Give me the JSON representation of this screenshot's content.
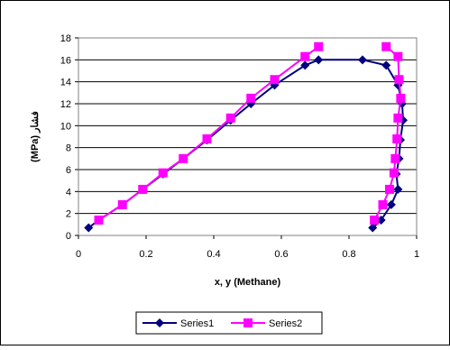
{
  "chart_data": {
    "type": "line",
    "title": "",
    "xlabel": "x, y (Methane)",
    "ylabel": "(MPa) فشار",
    "xlim": [
      0,
      1
    ],
    "ylim": [
      0,
      18
    ],
    "x_ticks": [
      0,
      0.2,
      0.4,
      0.6,
      0.8,
      1
    ],
    "x_tick_labels": [
      "0",
      "0.2",
      "0.4",
      "0.6",
      "0.8",
      "1"
    ],
    "y_ticks": [
      0,
      2,
      4,
      6,
      8,
      10,
      12,
      14,
      16,
      18
    ],
    "y_tick_labels": [
      "0",
      "2",
      "4",
      "6",
      "8",
      "10",
      "12",
      "14",
      "16",
      "18"
    ],
    "grid": "horizontal",
    "legend_position": "bottom",
    "series": [
      {
        "name": "Series1",
        "color": "#000080",
        "marker": "diamond",
        "points": [
          [
            0.03,
            0.7
          ],
          [
            0.06,
            1.4
          ],
          [
            0.13,
            2.8
          ],
          [
            0.19,
            4.2
          ],
          [
            0.25,
            5.6
          ],
          [
            0.31,
            7.0
          ],
          [
            0.38,
            8.7
          ],
          [
            0.45,
            10.5
          ],
          [
            0.51,
            12.0
          ],
          [
            0.58,
            13.7
          ],
          [
            0.67,
            15.5
          ],
          [
            0.71,
            16.0
          ],
          [
            0.84,
            16.0
          ],
          [
            0.91,
            15.5
          ],
          [
            0.945,
            13.7
          ],
          [
            0.957,
            12.0
          ],
          [
            0.96,
            10.5
          ],
          [
            0.952,
            8.7
          ],
          [
            0.948,
            7.0
          ],
          [
            0.94,
            5.6
          ],
          [
            0.945,
            4.2
          ],
          [
            0.925,
            2.8
          ],
          [
            0.895,
            1.4
          ],
          [
            0.87,
            0.7
          ]
        ]
      },
      {
        "name": "Series2",
        "color": "#ff00ff",
        "marker": "square",
        "points": [
          [
            0.06,
            1.4
          ],
          [
            0.13,
            2.8
          ],
          [
            0.19,
            4.2
          ],
          [
            0.25,
            5.7
          ],
          [
            0.31,
            7.0
          ],
          [
            0.38,
            8.8
          ],
          [
            0.45,
            10.7
          ],
          [
            0.51,
            12.5
          ],
          [
            0.58,
            14.2
          ],
          [
            0.67,
            16.3
          ],
          [
            0.71,
            17.2
          ]
        ],
        "points_right": [
          [
            0.91,
            17.2
          ],
          [
            0.945,
            16.3
          ],
          [
            0.948,
            14.2
          ],
          [
            0.953,
            12.5
          ],
          [
            0.945,
            10.7
          ],
          [
            0.942,
            8.8
          ],
          [
            0.937,
            7.0
          ],
          [
            0.933,
            5.7
          ],
          [
            0.92,
            4.2
          ],
          [
            0.9,
            2.8
          ],
          [
            0.875,
            1.4
          ]
        ]
      }
    ]
  }
}
